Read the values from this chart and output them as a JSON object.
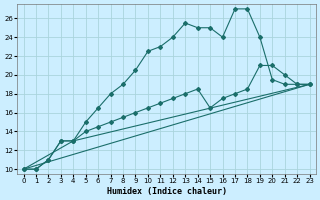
{
  "xlabel": "Humidex (Indice chaleur)",
  "bg_color": "#cceeff",
  "grid_color": "#aad4dd",
  "line_color": "#1a6e6a",
  "xlim": [
    -0.5,
    23.5
  ],
  "ylim": [
    9.5,
    27.5
  ],
  "yticks": [
    10,
    12,
    14,
    16,
    18,
    20,
    22,
    24,
    26
  ],
  "xticks": [
    0,
    1,
    2,
    3,
    4,
    5,
    6,
    7,
    8,
    9,
    10,
    11,
    12,
    13,
    14,
    15,
    16,
    17,
    18,
    19,
    20,
    21,
    22,
    23
  ],
  "line1_x": [
    0,
    1,
    2,
    3,
    4,
    5,
    6,
    7,
    8,
    9,
    10,
    11,
    12,
    13,
    14,
    15,
    16,
    17,
    18,
    19,
    20,
    21,
    22,
    23
  ],
  "line1_y": [
    10,
    10,
    11,
    13,
    13,
    15,
    16.5,
    18,
    19,
    20.5,
    22.5,
    23,
    24,
    25.5,
    25,
    25,
    24,
    27,
    27,
    24,
    19.5,
    19,
    19,
    19
  ],
  "line2_x": [
    0,
    1,
    2,
    3,
    4,
    5,
    6,
    7,
    8,
    9,
    10,
    11,
    12,
    13,
    14,
    15,
    16,
    17,
    18,
    19,
    20,
    21,
    22,
    23
  ],
  "line2_y": [
    10,
    10,
    11,
    13,
    13,
    14,
    14.5,
    15,
    15.5,
    16,
    16.5,
    17,
    17.5,
    18,
    18.5,
    16.5,
    17.5,
    18,
    18.5,
    21,
    21,
    20,
    19,
    19
  ],
  "line3_x": [
    0,
    23
  ],
  "line3_y": [
    10,
    19
  ],
  "line4_x": [
    0,
    4,
    23
  ],
  "line4_y": [
    10,
    13,
    19
  ]
}
